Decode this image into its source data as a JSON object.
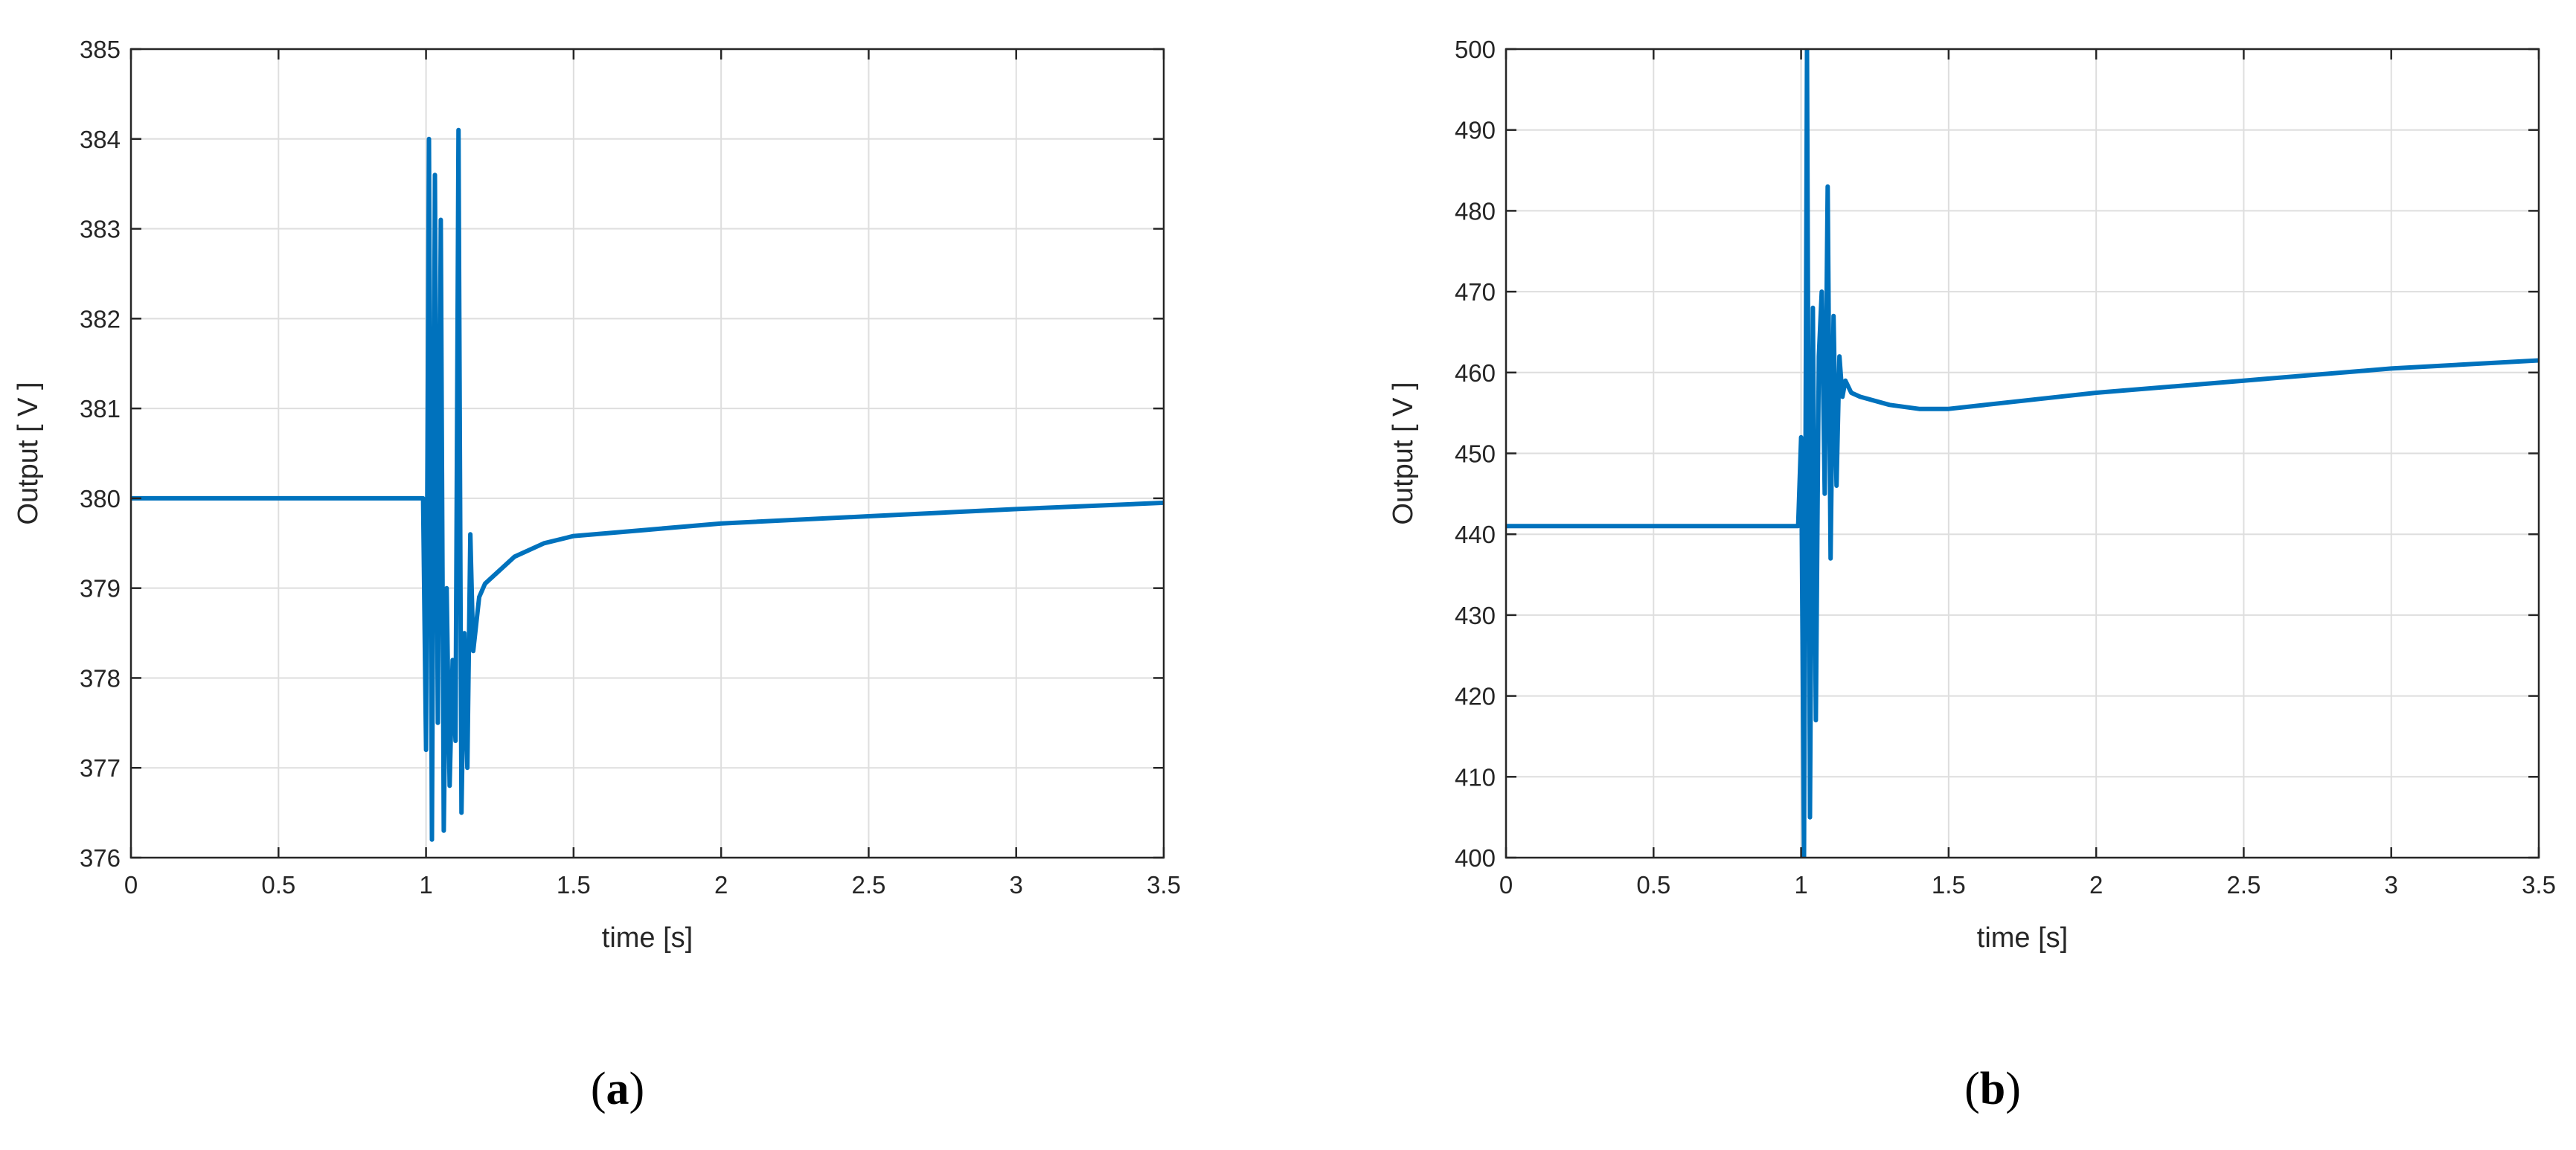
{
  "colors": {
    "series": "#0072BD",
    "grid": "#dedede",
    "axis": "#262626"
  },
  "chart_data": [
    {
      "type": "line",
      "panel": "a",
      "panel_label": "a",
      "xlabel": "time [s]",
      "ylabel": "Output [ V ]",
      "xlim": [
        0,
        3.5
      ],
      "ylim": [
        376,
        385
      ],
      "grid": true,
      "xticks": [
        0,
        0.5,
        1,
        1.5,
        2,
        2.5,
        3,
        3.5
      ],
      "xtick_labels": [
        "0",
        "0.5",
        "1",
        "1.5",
        "2",
        "2.5",
        "3",
        "3.5"
      ],
      "yticks": [
        376,
        377,
        378,
        379,
        380,
        381,
        382,
        383,
        384,
        385
      ],
      "ytick_labels": [
        "376",
        "377",
        "378",
        "379",
        "380",
        "381",
        "382",
        "383",
        "384",
        "385"
      ],
      "series": [
        {
          "x": [
            0,
            0.5,
            0.99,
            1.0,
            1.01,
            1.02,
            1.03,
            1.04,
            1.05,
            1.06,
            1.07,
            1.08,
            1.09,
            1.1,
            1.11,
            1.12,
            1.13,
            1.14,
            1.15,
            1.16,
            1.18,
            1.2,
            1.25,
            1.3,
            1.4,
            1.5,
            1.75,
            2.0,
            2.5,
            3.0,
            3.5
          ],
          "y": [
            380.0,
            380.0,
            380.0,
            377.2,
            384.0,
            376.2,
            383.6,
            377.5,
            383.1,
            376.3,
            379.0,
            376.8,
            378.2,
            377.3,
            384.1,
            376.5,
            378.5,
            377.0,
            379.6,
            378.3,
            378.9,
            379.05,
            379.2,
            379.35,
            379.5,
            379.58,
            379.65,
            379.72,
            379.8,
            379.88,
            379.95
          ]
        }
      ]
    },
    {
      "type": "line",
      "panel": "b",
      "panel_label": "b",
      "xlabel": "time [s]",
      "ylabel": "Output [ V ]",
      "xlim": [
        0,
        3.5
      ],
      "ylim": [
        400,
        500
      ],
      "grid": true,
      "xticks": [
        0,
        0.5,
        1,
        1.5,
        2,
        2.5,
        3,
        3.5
      ],
      "xtick_labels": [
        "0",
        "0.5",
        "1",
        "1.5",
        "2",
        "2.5",
        "3",
        "3.5"
      ],
      "yticks": [
        400,
        410,
        420,
        430,
        440,
        450,
        460,
        470,
        480,
        490,
        500
      ],
      "ytick_labels": [
        "400",
        "410",
        "420",
        "430",
        "440",
        "450",
        "460",
        "470",
        "480",
        "490",
        "500"
      ],
      "series": [
        {
          "x": [
            0,
            0.5,
            0.98,
            0.99,
            1.0,
            1.01,
            1.02,
            1.03,
            1.04,
            1.05,
            1.06,
            1.07,
            1.08,
            1.09,
            1.1,
            1.11,
            1.12,
            1.13,
            1.14,
            1.15,
            1.17,
            1.2,
            1.3,
            1.4,
            1.5,
            1.75,
            2.0,
            2.5,
            3.0,
            3.5
          ],
          "y": [
            441,
            441,
            441,
            441,
            452,
            400,
            500,
            405,
            468,
            417,
            462,
            470,
            445,
            483,
            437,
            467,
            446,
            462,
            457,
            459,
            457.5,
            457,
            456,
            455.5,
            455.5,
            456.5,
            457.5,
            459,
            460.5,
            461.5
          ]
        }
      ]
    }
  ]
}
